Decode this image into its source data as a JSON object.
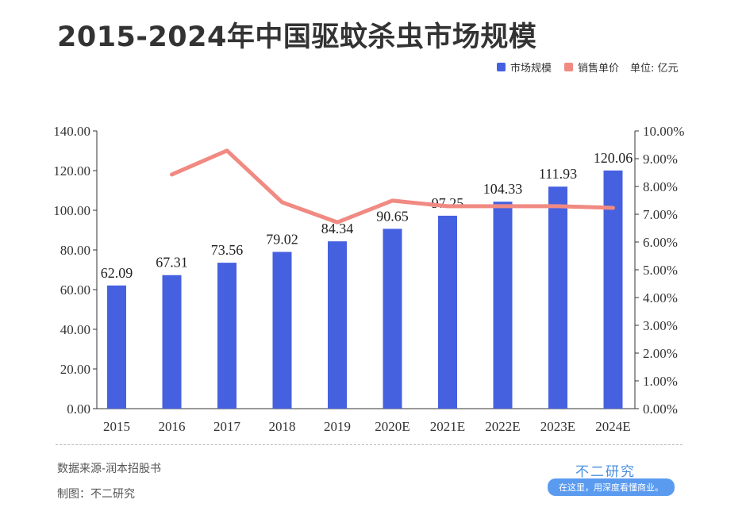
{
  "title": "2015-2024年中国驱蚊杀虫市场规模",
  "legend": {
    "bar": "市场规模",
    "line": "销售单价",
    "unit": "单位: 亿元"
  },
  "colors": {
    "bar": "#4561e0",
    "line": "#f08a82"
  },
  "footer": {
    "source": "数据来源-润本招股书",
    "maker": "制图：不二研究",
    "brand": "不二研究",
    "slogan": "在这里，用深度看懂商业。"
  },
  "chart_data": {
    "type": "bar+line",
    "title": "2015-2024年中国驱蚊杀虫市场规模",
    "categories": [
      "2015",
      "2016",
      "2017",
      "2018",
      "2019",
      "2020E",
      "2021E",
      "2022E",
      "2023E",
      "2024E"
    ],
    "series": [
      {
        "name": "市场规模",
        "type": "bar",
        "axis": "left",
        "values": [
          62.09,
          67.31,
          73.56,
          79.02,
          84.34,
          90.65,
          97.25,
          104.33,
          111.93,
          120.06
        ]
      },
      {
        "name": "销售单价",
        "type": "line",
        "axis": "right",
        "values": [
          null,
          8.43,
          9.29,
          7.43,
          6.71,
          7.49,
          7.29,
          7.29,
          7.29,
          7.23
        ]
      }
    ],
    "ylim_left": [
      0,
      140
    ],
    "yticks_left": [
      "0.00",
      "20.00",
      "40.00",
      "60.00",
      "80.00",
      "100.00",
      "120.00",
      "140.00"
    ],
    "ylim_right": [
      0,
      10
    ],
    "yticks_right": [
      "0.00%",
      "1.00%",
      "2.00%",
      "3.00%",
      "4.00%",
      "5.00%",
      "6.00%",
      "7.00%",
      "8.00%",
      "9.00%",
      "10.00%"
    ],
    "legend_position": "top-right",
    "grid": false
  }
}
